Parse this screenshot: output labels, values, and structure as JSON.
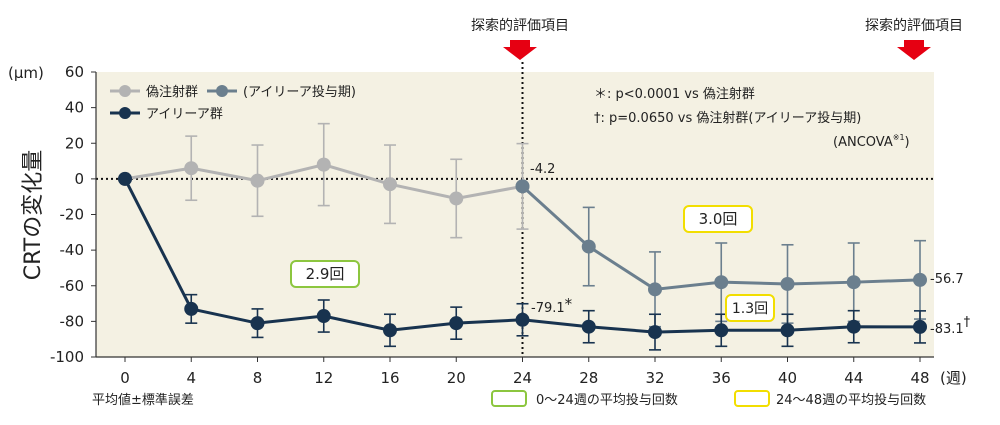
{
  "chart_data": {
    "type": "line",
    "ylabel": "CRTの変化量",
    "yunit": "(μm)",
    "xunit": "(週)",
    "ylim": [
      -100,
      60
    ],
    "yticks": [
      60,
      40,
      20,
      0,
      -20,
      -40,
      -60,
      -80,
      -100
    ],
    "xticks": [
      0,
      4,
      8,
      12,
      16,
      20,
      24,
      28,
      32,
      36,
      40,
      44,
      48
    ],
    "x_below": "平均値±標準誤差",
    "series": [
      {
        "name": "偽注射群",
        "color": "#b3b3b3",
        "x": [
          0,
          4,
          8,
          12,
          16,
          20,
          24
        ],
        "y": [
          0,
          6,
          -1,
          8,
          -3,
          -11,
          -4.2
        ],
        "err": [
          0,
          18,
          20,
          23,
          22,
          22,
          24
        ]
      },
      {
        "name": "(アイリーア投与期)",
        "color": "#6b7f8e",
        "x": [
          24,
          28,
          32,
          36,
          40,
          44,
          48
        ],
        "y": [
          -4.2,
          -38,
          -62,
          -58,
          -59,
          -58,
          -56.7
        ],
        "err": [
          24,
          22,
          21,
          22,
          22,
          22,
          22
        ]
      },
      {
        "name": "アイリーア群",
        "color": "#18334f",
        "x": [
          0,
          4,
          8,
          12,
          16,
          20,
          24,
          28,
          32,
          36,
          40,
          44,
          48
        ],
        "y": [
          0,
          -73,
          -81,
          -77,
          -85,
          -81,
          -79.1,
          -83,
          -86,
          -85,
          -85,
          -83,
          -83.1
        ],
        "err": [
          0,
          8,
          8,
          9,
          9,
          9,
          9,
          9,
          10,
          9,
          9,
          9,
          9
        ]
      }
    ],
    "point_labels": {
      "sham_24": "-4.2",
      "eylea_24": "-79.1",
      "eylea_24_mark": "*",
      "switch_48": "-56.7",
      "eylea_48": "-83.1",
      "eylea_48_mark": "†"
    },
    "annotations": {
      "explore_label": "探索的評価項目",
      "sig1": "＊: p<0.0001 vs 偽注射群",
      "sig2": "†: p=0.0650 vs 偽注射群(アイリーア投与期)",
      "ancova": "(ANCOVA",
      "ancova_sup": "※1",
      "ancova_close": ")",
      "box_green": "2.9回",
      "box_yellow_big": "3.0回",
      "box_yellow_small": "1.3回",
      "legend_green": "0〜24週の平均投与回数",
      "legend_yellow": "24〜48週の平均投与回数"
    },
    "colors": {
      "background": "#f4f1e3",
      "green": "#8cc63f",
      "yellow": "#f2de00",
      "arrow": "#e60012"
    }
  }
}
